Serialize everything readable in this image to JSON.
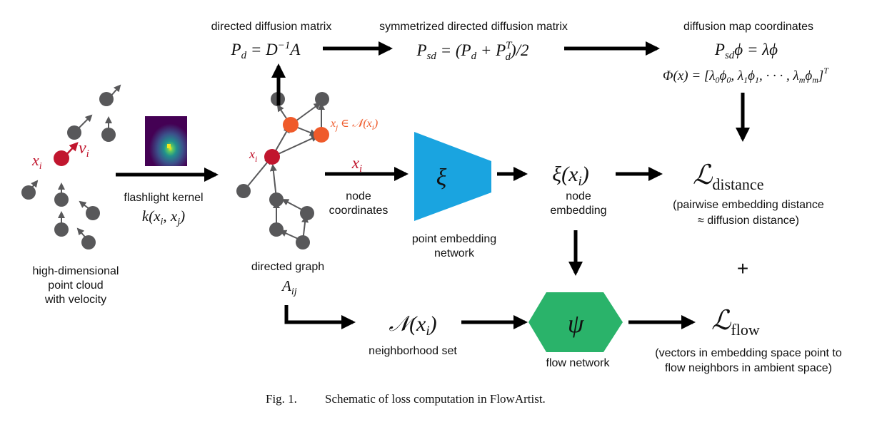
{
  "colors": {
    "node": "#58585a",
    "node_highlight": "#c1162e",
    "node_neighbor": "#ef5a2a",
    "embedding_network": "#1aa4e0",
    "flow_network": "#2ab36a",
    "arrow": "#000000"
  },
  "point_cloud": {
    "xi": "x",
    "xi_sub": "i",
    "vi": "v",
    "vi_sub": "i",
    "label_line1": "high-dimensional",
    "label_line2": "point cloud",
    "label_line3": "with velocity"
  },
  "kernel": {
    "label": "flashlight kernel",
    "formula": "k(x",
    "formula_sub1": "i",
    "formula_mid": ", x",
    "formula_sub2": "j",
    "formula_end": ")",
    "heatmap_icon": "heatmap-thumbnail"
  },
  "directed_graph": {
    "xi": "x",
    "xi_sub": "i",
    "xj_label": "x",
    "xj_sub": "j",
    "xj_in": " ∈ 𝒩(x",
    "xj_in_sub": "i",
    "xj_close": ")",
    "label": "directed graph",
    "aij": "A",
    "aij_sub": "ij"
  },
  "diffusion": {
    "directed_title": "directed diffusion matrix",
    "directed_formula_a": "P",
    "directed_formula_sub": "d",
    "directed_formula_b": " = D",
    "directed_formula_sup": "−1",
    "directed_formula_c": "A",
    "sym_title": "symmetrized directed diffusion matrix",
    "sym_a": "P",
    "sym_a_sub": "sd",
    "sym_b": " = (P",
    "sym_b_sub": "d",
    "sym_c": " + P",
    "sym_c_sup": "T",
    "sym_c_sub": "d",
    "sym_d": ")/2",
    "map_title": "diffusion map coordinates",
    "map_a": "P",
    "map_a_sub": "sd",
    "map_b": "ϕ = λϕ",
    "phi_a": "Φ(x) = [λ",
    "phi_s0": "0",
    "phi_b": "ϕ",
    "phi_s0b": "0",
    "phi_c": ", λ",
    "phi_s1": "1",
    "phi_d": "ϕ",
    "phi_s1b": "1",
    "phi_e": ", · · · , λ",
    "phi_sm": "m",
    "phi_f": "ϕ",
    "phi_smb": "m",
    "phi_g": "]",
    "phi_sup": "T"
  },
  "embedding": {
    "input_var": "x",
    "input_sub": "i",
    "input_label1": "node",
    "input_label2": "coordinates",
    "network_symbol": "ξ",
    "network_label1": "point embedding",
    "network_label2": "network",
    "output": "ξ(x",
    "output_sub": "i",
    "output_close": ")",
    "output_label1": "node",
    "output_label2": "embedding"
  },
  "loss_distance": {
    "symbol": "ℒ",
    "sub": "distance",
    "desc1": "(pairwise embedding distance",
    "desc2": "≈ diffusion distance)"
  },
  "plus": "+",
  "neighborhood": {
    "symbol": "𝒩(x",
    "sub": "i",
    "close": ")",
    "label": "neighborhood set"
  },
  "flow": {
    "network_symbol": "ψ",
    "network_label": "flow network",
    "loss_symbol": "ℒ",
    "loss_sub": "flow",
    "desc1": "(vectors in embedding space point to",
    "desc2": "flow neighbors in ambient space)"
  },
  "caption": {
    "prefix": "Fig. 1.",
    "text": "Schematic of loss computation in FlowArtist."
  }
}
